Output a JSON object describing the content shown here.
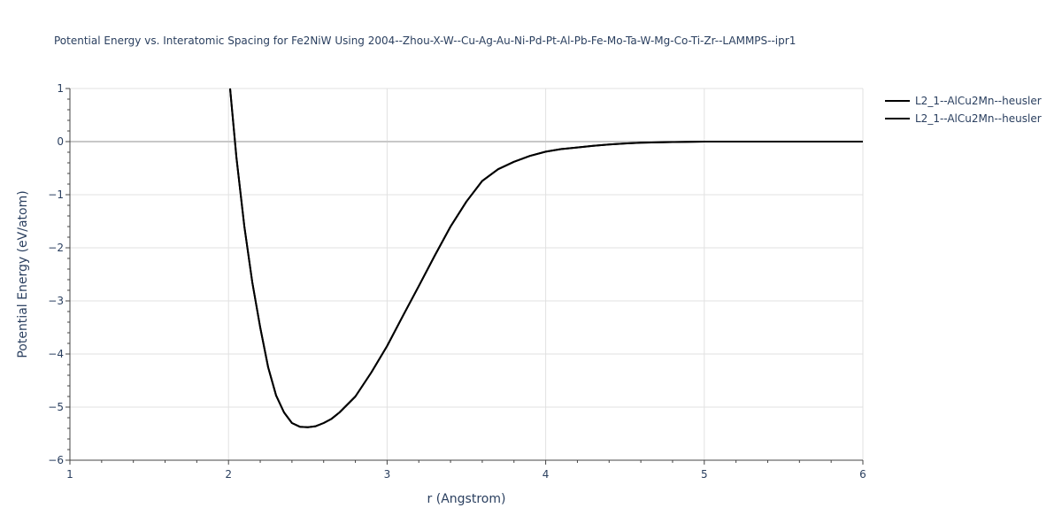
{
  "chart_data": {
    "type": "line",
    "title": "Potential Energy vs. Interatomic Spacing for Fe2NiW Using 2004--Zhou-X-W--Cu-Ag-Au-Ni-Pd-Pt-Al-Pb-Fe-Mo-Ta-W-Mg-Co-Ti-Zr--LAMMPS--ipr1",
    "xlabel": "r (Angstrom)",
    "ylabel": "Potential Energy (eV/atom)",
    "xlim": [
      1,
      6
    ],
    "ylim": [
      -6,
      1
    ],
    "xticks": [
      1,
      2,
      3,
      4,
      5,
      6
    ],
    "yticks": [
      1,
      0,
      -1,
      -2,
      -3,
      -4,
      -5,
      -6
    ],
    "xtick_labels": [
      "1",
      "2",
      "3",
      "4",
      "5",
      "6"
    ],
    "ytick_labels": [
      "1",
      "0",
      "−1",
      "−2",
      "−3",
      "−4",
      "−5",
      "−6"
    ],
    "grid": true,
    "legend_position": "top-right",
    "series": [
      {
        "name": "L2_1--AlCu2Mn--heusler",
        "color": "#000000",
        "x": [
          2.01,
          2.05,
          2.1,
          2.15,
          2.2,
          2.25,
          2.3,
          2.35,
          2.4,
          2.45,
          2.5,
          2.55,
          2.6,
          2.65,
          2.7,
          2.8,
          2.9,
          3.0,
          3.1,
          3.2,
          3.3,
          3.4,
          3.5,
          3.6,
          3.7,
          3.8,
          3.9,
          4.0,
          4.1,
          4.2,
          4.3,
          4.4,
          4.5,
          4.6,
          4.8,
          5.0,
          5.2,
          5.5,
          6.0
        ],
        "y": [
          1.0,
          -0.3,
          -1.6,
          -2.65,
          -3.5,
          -4.25,
          -4.78,
          -5.1,
          -5.3,
          -5.37,
          -5.38,
          -5.36,
          -5.3,
          -5.22,
          -5.1,
          -4.8,
          -4.35,
          -3.85,
          -3.28,
          -2.72,
          -2.15,
          -1.6,
          -1.13,
          -0.74,
          -0.52,
          -0.38,
          -0.27,
          -0.19,
          -0.14,
          -0.11,
          -0.08,
          -0.055,
          -0.035,
          -0.02,
          -0.008,
          0.0,
          0.0,
          0.0,
          0.0
        ]
      },
      {
        "name": "L2_1--AlCu2Mn--heusler",
        "color": "#000000",
        "x": [
          2.01,
          2.05,
          2.1,
          2.15,
          2.2,
          2.25,
          2.3,
          2.35,
          2.4,
          2.45,
          2.5,
          2.55,
          2.6,
          2.65,
          2.7,
          2.8,
          2.9,
          3.0,
          3.1,
          3.2,
          3.3,
          3.4,
          3.5,
          3.6,
          3.7,
          3.8,
          3.9,
          4.0,
          4.1,
          4.2,
          4.3,
          4.4,
          4.5,
          4.6,
          4.8,
          5.0,
          5.2,
          5.5,
          6.0
        ],
        "y": [
          1.0,
          -0.3,
          -1.6,
          -2.65,
          -3.5,
          -4.25,
          -4.78,
          -5.1,
          -5.3,
          -5.37,
          -5.38,
          -5.36,
          -5.3,
          -5.22,
          -5.1,
          -4.8,
          -4.35,
          -3.85,
          -3.28,
          -2.72,
          -2.15,
          -1.6,
          -1.13,
          -0.74,
          -0.52,
          -0.38,
          -0.27,
          -0.19,
          -0.14,
          -0.11,
          -0.08,
          -0.055,
          -0.035,
          -0.02,
          -0.008,
          0.0,
          0.0,
          0.0,
          0.0
        ]
      }
    ]
  }
}
